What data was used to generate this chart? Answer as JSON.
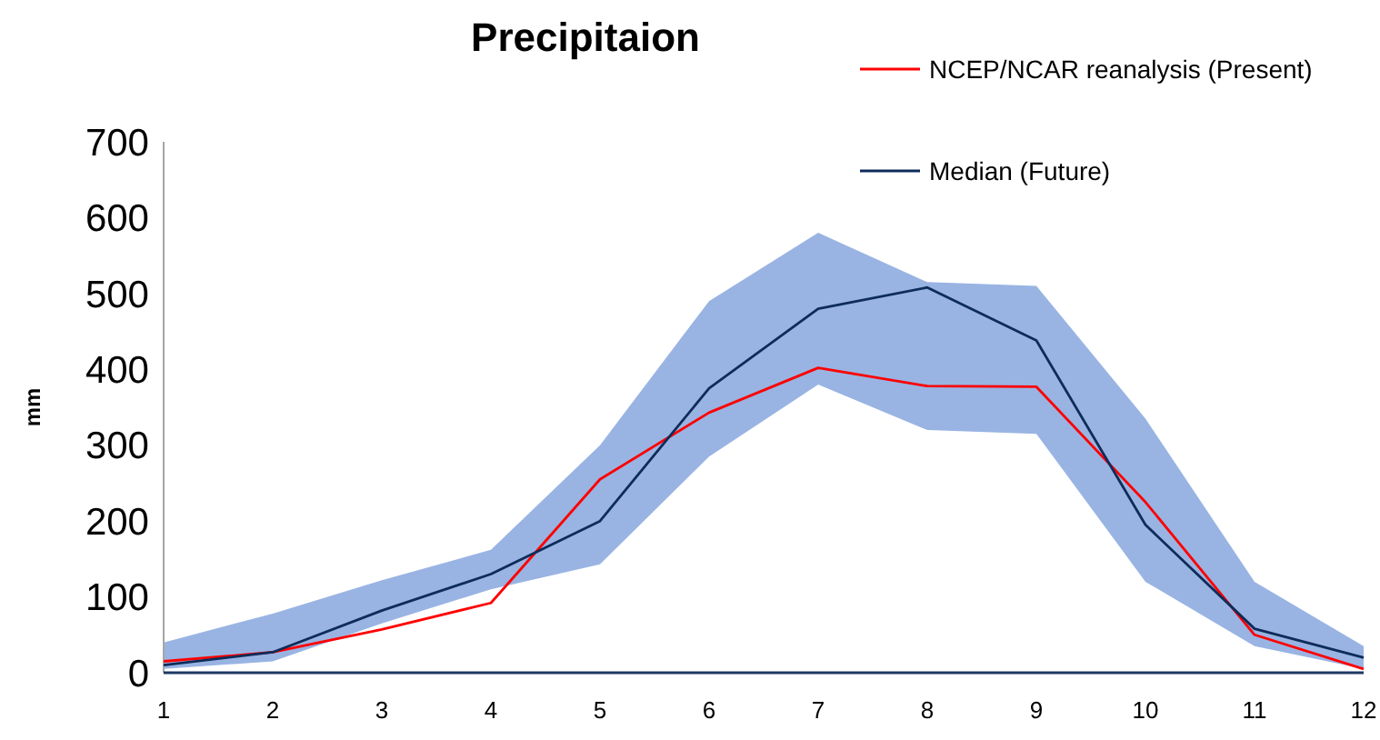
{
  "chart_data": {
    "type": "line",
    "title": "Precipitaion",
    "ylabel": "mm",
    "x": [
      1,
      2,
      3,
      4,
      5,
      6,
      7,
      8,
      9,
      10,
      11,
      12
    ],
    "xlim": [
      1,
      12
    ],
    "xticks": [
      1,
      2,
      3,
      4,
      5,
      6,
      7,
      8,
      9,
      10,
      11,
      12
    ],
    "ylim": [
      0,
      700
    ],
    "yticks": [
      0,
      100,
      200,
      300,
      400,
      500,
      600,
      700
    ],
    "grid": false,
    "legend": "top right",
    "marker": "none",
    "line_style": "solid",
    "series": [
      {
        "name": "NCEP/NCAR reanalysis (Present)",
        "color": "#ff0000",
        "values": [
          15,
          27,
          57,
          92,
          255,
          343,
          402,
          378,
          377,
          225,
          50,
          5
        ]
      },
      {
        "name": "Median (Future)",
        "color": "#0e2c5a",
        "values": [
          10,
          27,
          82,
          130,
          200,
          375,
          480,
          508,
          438,
          195,
          58,
          20
        ],
        "lower": [
          5,
          15,
          65,
          110,
          143,
          285,
          380,
          320,
          315,
          120,
          35,
          5
        ],
        "upper": [
          40,
          78,
          122,
          162,
          300,
          490,
          580,
          515,
          510,
          335,
          120,
          35
        ]
      }
    ]
  }
}
